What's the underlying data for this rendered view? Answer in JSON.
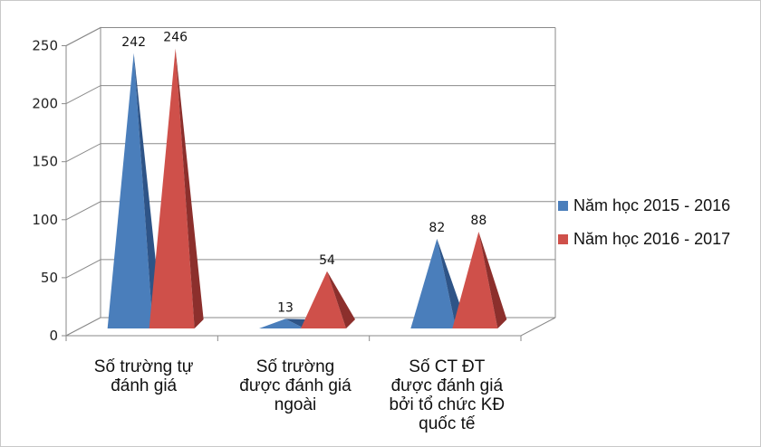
{
  "chart_data": {
    "type": "bar",
    "style": "3d-pyramid",
    "title": "",
    "xlabel": "",
    "ylabel": "",
    "ylim": [
      0,
      250
    ],
    "yticks": [
      "0",
      "50",
      "100",
      "150",
      "200",
      "250"
    ],
    "grid": true,
    "legend_position": "right",
    "categories": [
      [
        "Số trường tự",
        "đánh giá"
      ],
      [
        "Số trường",
        "được đánh giá",
        "ngoài"
      ],
      [
        "Số CT ĐT",
        "được đánh giá",
        "bởi tổ chức KĐ",
        "quốc tế"
      ]
    ],
    "series": [
      {
        "name": "Năm học 2015 - 2016",
        "values": [
          242,
          13,
          82
        ],
        "labels": [
          "242",
          "13",
          "82"
        ],
        "color": "#4a7ebb",
        "dark": "#2e5487"
      },
      {
        "name": "Năm học 2016 - 2017",
        "values": [
          246,
          54,
          88
        ],
        "labels": [
          "246",
          "54",
          "88"
        ],
        "color": "#cf504a",
        "dark": "#8c2f2c"
      }
    ]
  }
}
